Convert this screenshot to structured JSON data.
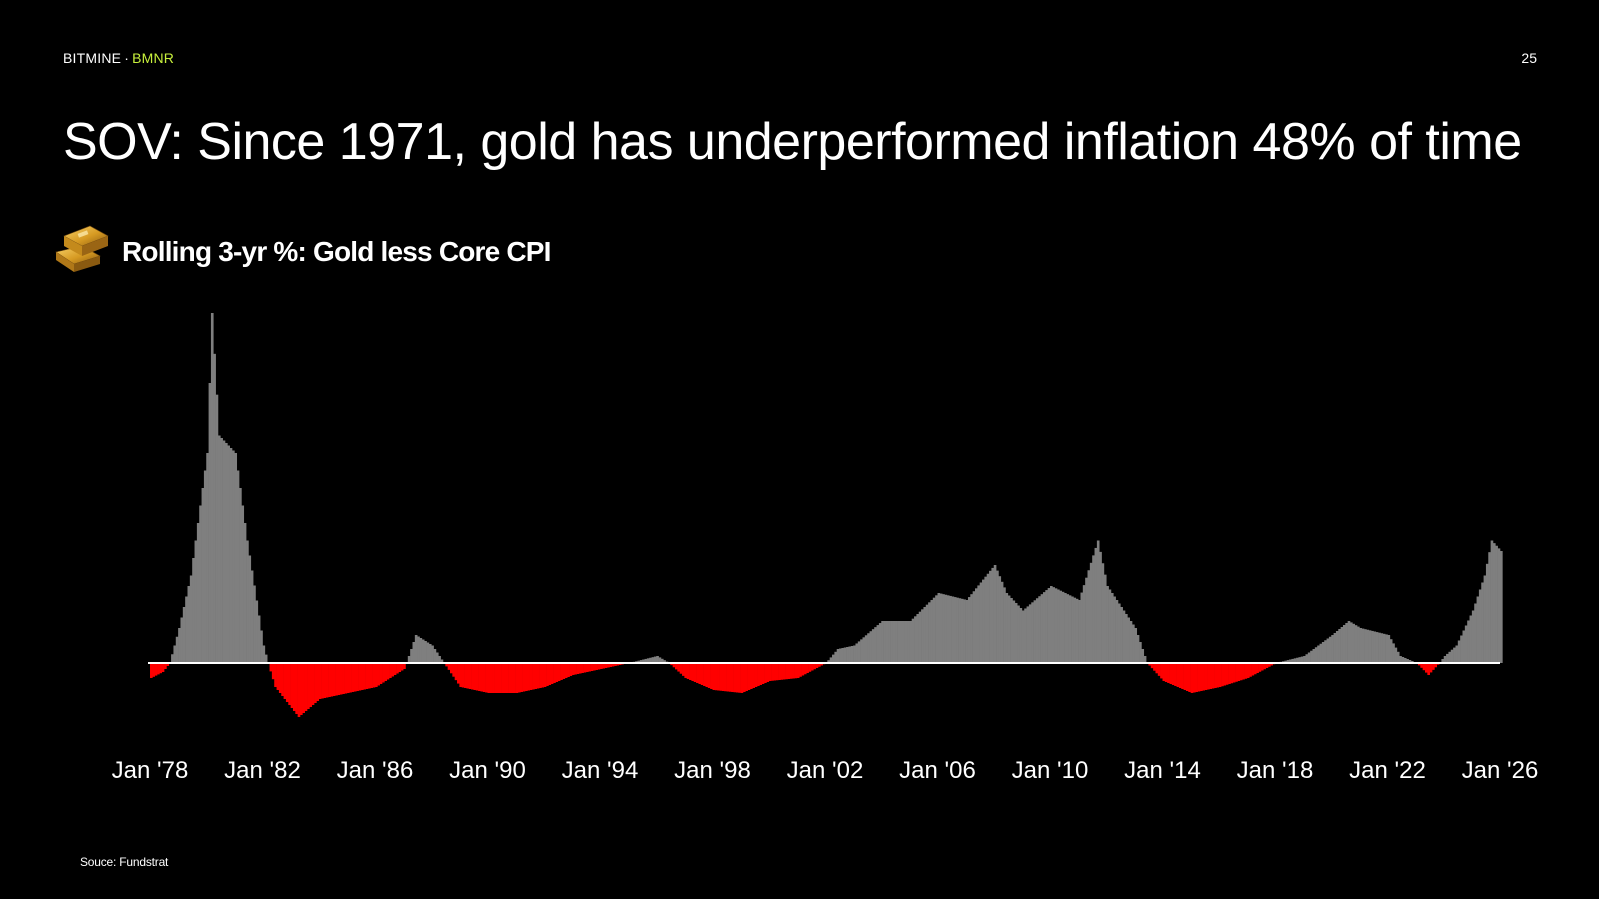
{
  "header": {
    "brand_name": "BITMINE",
    "separator": "·",
    "ticker": "BMNR",
    "page_number": "25"
  },
  "title": "SOV: Since 1971, gold has underperformed inflation 48% of time",
  "footer": {
    "source": "Souce: Fundstrat"
  },
  "colors": {
    "background": "#000000",
    "text": "#ffffff",
    "ticker": "#c8f03c",
    "positive_bars": "#7f7f7f",
    "negative_bars": "#ff0000",
    "zero_line": "#ffffff"
  },
  "icon": "gold-bars-icon",
  "chart_data": {
    "type": "bar",
    "title": "Rolling 3-yr %: Gold less Core CPI",
    "xlabel": "",
    "ylabel": "",
    "x_ticks": [
      "Jan '78",
      "Jan '82",
      "Jan '86",
      "Jan '90",
      "Jan '94",
      "Jan '98",
      "Jan '02",
      "Jan '06",
      "Jan '10",
      "Jan '14",
      "Jan '18",
      "Jan '22",
      "Jan '26"
    ],
    "x_range": [
      "1978-01",
      "2026-01"
    ],
    "ylim": [
      -20,
      110
    ],
    "y_axis_labels_shown": false,
    "grid": false,
    "legend": "none",
    "series": [
      {
        "points": [
          [
            "1978-01",
            -5
          ],
          [
            "1978-06",
            -3
          ],
          [
            "1978-09",
            0
          ],
          [
            "1979-01",
            10
          ],
          [
            "1979-06",
            25
          ],
          [
            "1980-01",
            60
          ],
          [
            "1980-03",
            100
          ],
          [
            "1980-06",
            65
          ],
          [
            "1981-01",
            60
          ],
          [
            "1981-06",
            35
          ],
          [
            "1982-01",
            5
          ],
          [
            "1982-06",
            -8
          ],
          [
            "1983-01",
            -15
          ],
          [
            "1983-04",
            -18
          ],
          [
            "1984-01",
            -12
          ],
          [
            "1985-01",
            -10
          ],
          [
            "1986-01",
            -8
          ],
          [
            "1987-01",
            -2
          ],
          [
            "1987-06",
            8
          ],
          [
            "1988-01",
            5
          ],
          [
            "1988-06",
            0
          ],
          [
            "1989-01",
            -8
          ],
          [
            "1990-01",
            -10
          ],
          [
            "1991-01",
            -10
          ],
          [
            "1992-01",
            -8
          ],
          [
            "1993-01",
            -4
          ],
          [
            "1994-01",
            -2
          ],
          [
            "1995-01",
            0
          ],
          [
            "1996-01",
            2
          ],
          [
            "1996-06",
            0
          ],
          [
            "1997-01",
            -5
          ],
          [
            "1998-01",
            -9
          ],
          [
            "1999-01",
            -10
          ],
          [
            "2000-01",
            -6
          ],
          [
            "2001-01",
            -5
          ],
          [
            "2002-01",
            0
          ],
          [
            "2002-06",
            4
          ],
          [
            "2003-01",
            5
          ],
          [
            "2004-01",
            12
          ],
          [
            "2005-01",
            12
          ],
          [
            "2006-01",
            20
          ],
          [
            "2007-01",
            18
          ],
          [
            "2008-01",
            28
          ],
          [
            "2008-06",
            20
          ],
          [
            "2009-01",
            15
          ],
          [
            "2010-01",
            22
          ],
          [
            "2011-01",
            18
          ],
          [
            "2011-09",
            35
          ],
          [
            "2012-01",
            22
          ],
          [
            "2013-01",
            10
          ],
          [
            "2013-06",
            0
          ],
          [
            "2014-01",
            -6
          ],
          [
            "2015-01",
            -10
          ],
          [
            "2016-01",
            -8
          ],
          [
            "2017-01",
            -5
          ],
          [
            "2018-01",
            0
          ],
          [
            "2019-01",
            2
          ],
          [
            "2020-01",
            8
          ],
          [
            "2020-08",
            12
          ],
          [
            "2021-01",
            10
          ],
          [
            "2022-01",
            8
          ],
          [
            "2022-06",
            2
          ],
          [
            "2023-01",
            0
          ],
          [
            "2023-06",
            -4
          ],
          [
            "2024-01",
            2
          ],
          [
            "2024-06",
            5
          ],
          [
            "2025-01",
            15
          ],
          [
            "2025-06",
            25
          ],
          [
            "2025-09",
            35
          ],
          [
            "2026-01",
            32
          ]
        ]
      }
    ]
  }
}
